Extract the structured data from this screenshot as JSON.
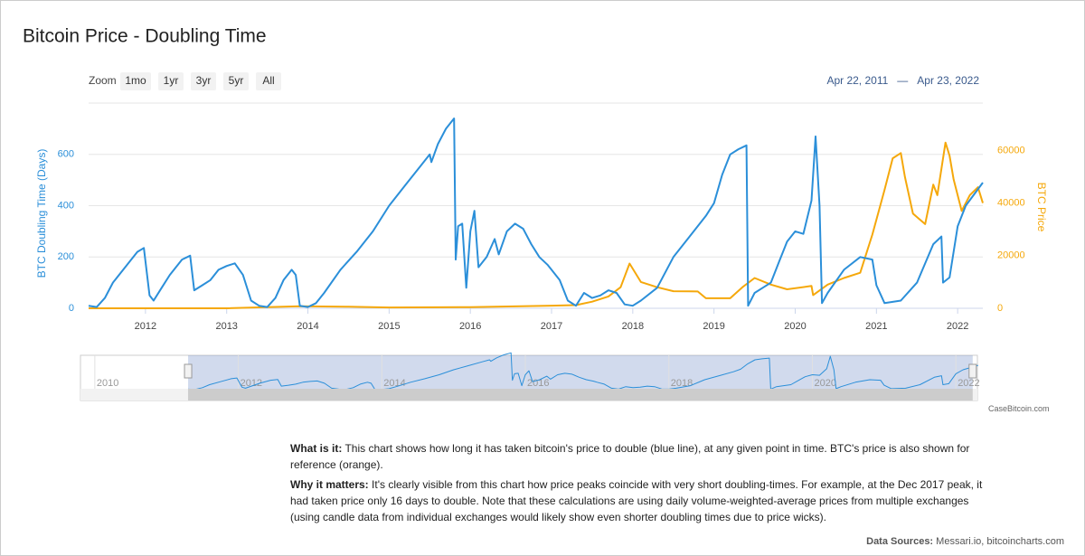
{
  "chart_data": {
    "type": "line",
    "title": "Bitcoin Price - Doubling Time",
    "zoom_label": "Zoom",
    "zoom_buttons": [
      "1mo",
      "1yr",
      "3yr",
      "5yr",
      "All"
    ],
    "range_from": "Apr 22, 2011",
    "range_sep": "—",
    "range_to": "Apr 23, 2022",
    "xlim": [
      2011.3,
      2022.31
    ],
    "xticks": [
      2012,
      2013,
      2014,
      2015,
      2016,
      2017,
      2018,
      2019,
      2020,
      2021,
      2022
    ],
    "ylim": [
      0,
      800
    ],
    "yticks": [
      0,
      200,
      400,
      600
    ],
    "y2lim": [
      0,
      78000
    ],
    "y2ticks": [
      0,
      20000,
      40000,
      60000
    ],
    "grid": true,
    "series": [
      {
        "name": "BTC Doubling Time (Days)",
        "color": "#2b8fd9",
        "x": [
          2011.3,
          2011.4,
          2011.5,
          2011.6,
          2011.75,
          2011.9,
          2011.98,
          2012.05,
          2012.1,
          2012.2,
          2012.3,
          2012.45,
          2012.55,
          2012.6,
          2012.7,
          2012.8,
          2012.9,
          2013.0,
          2013.1,
          2013.2,
          2013.3,
          2013.4,
          2013.5,
          2013.6,
          2013.7,
          2013.8,
          2013.85,
          2013.9,
          2014.0,
          2014.1,
          2014.2,
          2014.4,
          2014.6,
          2014.8,
          2015.0,
          2015.2,
          2015.4,
          2015.5,
          2015.52,
          2015.6,
          2015.7,
          2015.8,
          2015.82,
          2015.85,
          2015.9,
          2015.95,
          2016.0,
          2016.05,
          2016.1,
          2016.2,
          2016.3,
          2016.35,
          2016.45,
          2016.55,
          2016.65,
          2016.75,
          2016.85,
          2016.95,
          2017.0,
          2017.1,
          2017.2,
          2017.3,
          2017.4,
          2017.5,
          2017.6,
          2017.7,
          2017.8,
          2017.9,
          2018.0,
          2018.1,
          2018.3,
          2018.5,
          2018.7,
          2018.9,
          2019.0,
          2019.1,
          2019.2,
          2019.3,
          2019.4,
          2019.42,
          2019.5,
          2019.6,
          2019.7,
          2019.8,
          2019.9,
          2020.0,
          2020.1,
          2020.2,
          2020.25,
          2020.3,
          2020.33,
          2020.4,
          2020.6,
          2020.8,
          2020.95,
          2021.0,
          2021.1,
          2021.3,
          2021.5,
          2021.7,
          2021.8,
          2021.82,
          2021.9,
          2022.0,
          2022.1,
          2022.31
        ],
        "values": [
          10,
          5,
          40,
          100,
          160,
          220,
          235,
          50,
          30,
          80,
          130,
          190,
          205,
          70,
          90,
          110,
          150,
          165,
          175,
          130,
          30,
          10,
          5,
          40,
          110,
          150,
          130,
          10,
          5,
          20,
          60,
          150,
          220,
          300,
          400,
          480,
          560,
          600,
          570,
          640,
          700,
          740,
          190,
          320,
          330,
          80,
          300,
          380,
          160,
          200,
          270,
          210,
          300,
          330,
          310,
          250,
          200,
          170,
          150,
          110,
          30,
          10,
          60,
          40,
          50,
          70,
          60,
          15,
          10,
          30,
          80,
          200,
          280,
          360,
          410,
          520,
          600,
          620,
          635,
          10,
          60,
          80,
          100,
          180,
          260,
          300,
          290,
          420,
          670,
          400,
          20,
          60,
          150,
          200,
          190,
          90,
          20,
          30,
          100,
          250,
          280,
          100,
          120,
          320,
          400,
          490
        ]
      },
      {
        "name": "BTC Price",
        "color": "#f5a80b",
        "axis": "y2",
        "x": [
          2011.3,
          2013.0,
          2013.9,
          2014.5,
          2015.0,
          2016.0,
          2017.0,
          2017.3,
          2017.5,
          2017.7,
          2017.85,
          2017.96,
          2018.1,
          2018.3,
          2018.5,
          2018.8,
          2018.9,
          2019.2,
          2019.35,
          2019.5,
          2019.7,
          2019.9,
          2020.2,
          2020.22,
          2020.4,
          2020.6,
          2020.8,
          2020.95,
          2021.1,
          2021.2,
          2021.3,
          2021.35,
          2021.45,
          2021.6,
          2021.7,
          2021.75,
          2021.85,
          2021.9,
          2021.95,
          2022.05,
          2022.15,
          2022.25,
          2022.31
        ],
        "values": [
          1,
          13,
          800,
          600,
          300,
          430,
          1000,
          1200,
          2500,
          4500,
          8000,
          17000,
          10000,
          8000,
          6500,
          6400,
          3800,
          3800,
          8000,
          11500,
          9000,
          7200,
          8500,
          5000,
          9000,
          11500,
          13500,
          28000,
          45000,
          57000,
          59000,
          50000,
          36000,
          32000,
          47000,
          43000,
          63000,
          58000,
          49000,
          37000,
          43000,
          46000,
          40000
        ]
      }
    ],
    "navigator_xlim": [
      2009.8,
      2022.3
    ],
    "navigator_xticks": [
      2010,
      2012,
      2014,
      2016,
      2018,
      2020,
      2022
    ],
    "credit": "CaseBitcoin.com"
  },
  "notes": [
    {
      "label": "What is it:",
      "text": "This chart shows how long it has taken bitcoin's price to double (blue line), at any given point in time. BTC's price is also shown for reference (orange)."
    },
    {
      "label": "Why it matters:",
      "text": "It's clearly visible from this chart how price peaks coincide with very short doubling-times. For example, at the Dec 2017 peak, it had taken price only 16 days to double. Note that these calculations are using daily volume-weighted-average prices from multiple exchanges (using candle data from individual exchanges would likely show even shorter doubling times due to price wicks)."
    }
  ],
  "sources_label": "Data Sources:",
  "sources": "Messari.io, bitcoincharts.com"
}
